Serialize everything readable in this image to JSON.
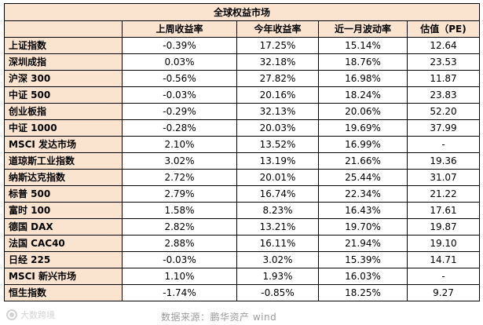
{
  "table": {
    "title": "全球权益市场",
    "headers": [
      "",
      "上周收益率",
      "今年收益率",
      "近一月波动率",
      "估值（PE)"
    ],
    "rows": [
      {
        "name": "上证指数",
        "weekly": "-0.39%",
        "ytd": "17.25%",
        "vol": "15.14%",
        "pe": "12.64"
      },
      {
        "name": "深圳成指",
        "weekly": "0.03%",
        "ytd": "32.18%",
        "vol": "18.76%",
        "pe": "23.53"
      },
      {
        "name": "沪深 300",
        "weekly": "-0.56%",
        "ytd": "27.82%",
        "vol": "16.98%",
        "pe": "11.87"
      },
      {
        "name": "中证 500",
        "weekly": "-0.03%",
        "ytd": "20.16%",
        "vol": "18.24%",
        "pe": "23.83"
      },
      {
        "name": "创业板指",
        "weekly": "-0.29%",
        "ytd": "32.13%",
        "vol": "20.06%",
        "pe": "52.20"
      },
      {
        "name": "中证 1000",
        "weekly": "-0.28%",
        "ytd": "20.03%",
        "vol": "19.69%",
        "pe": "37.99"
      },
      {
        "name": "MSCI 发达市场",
        "weekly": "2.10%",
        "ytd": "13.52%",
        "vol": "16.99%",
        "pe": "-"
      },
      {
        "name": "道琼斯工业指数",
        "weekly": "3.02%",
        "ytd": "13.19%",
        "vol": "21.66%",
        "pe": "19.36"
      },
      {
        "name": "纳斯达克指数",
        "weekly": "2.72%",
        "ytd": "20.01%",
        "vol": "25.44%",
        "pe": "31.07"
      },
      {
        "name": "标普 500",
        "weekly": "2.79%",
        "ytd": "16.74%",
        "vol": "22.34%",
        "pe": "21.22"
      },
      {
        "name": "富时 100",
        "weekly": "1.58%",
        "ytd": "8.23%",
        "vol": "16.43%",
        "pe": "17.61"
      },
      {
        "name": "德国 DAX",
        "weekly": "2.82%",
        "ytd": "13.21%",
        "vol": "19.70%",
        "pe": "19.87"
      },
      {
        "name": "法国 CAC40",
        "weekly": "2.88%",
        "ytd": "16.11%",
        "vol": "21.94%",
        "pe": "19.10"
      },
      {
        "name": "日经 225",
        "weekly": "-0.03%",
        "ytd": "3.02%",
        "vol": "15.39%",
        "pe": "14.71"
      },
      {
        "name": "MSCI 新兴市场",
        "weekly": "1.10%",
        "ytd": "1.93%",
        "vol": "16.03%",
        "pe": "-"
      },
      {
        "name": "恒生指数",
        "weekly": "-1.74%",
        "ytd": "-0.85%",
        "vol": "18.25%",
        "pe": "9.27"
      }
    ]
  },
  "source_note": "数据来源：鹏华资产  wind",
  "watermark": {
    "text": "大数跨境",
    "icon": "logo-icon"
  },
  "colors": {
    "header_fill": "#fbe4cf",
    "border": "#000000",
    "note_text": "#9a9a9a"
  }
}
